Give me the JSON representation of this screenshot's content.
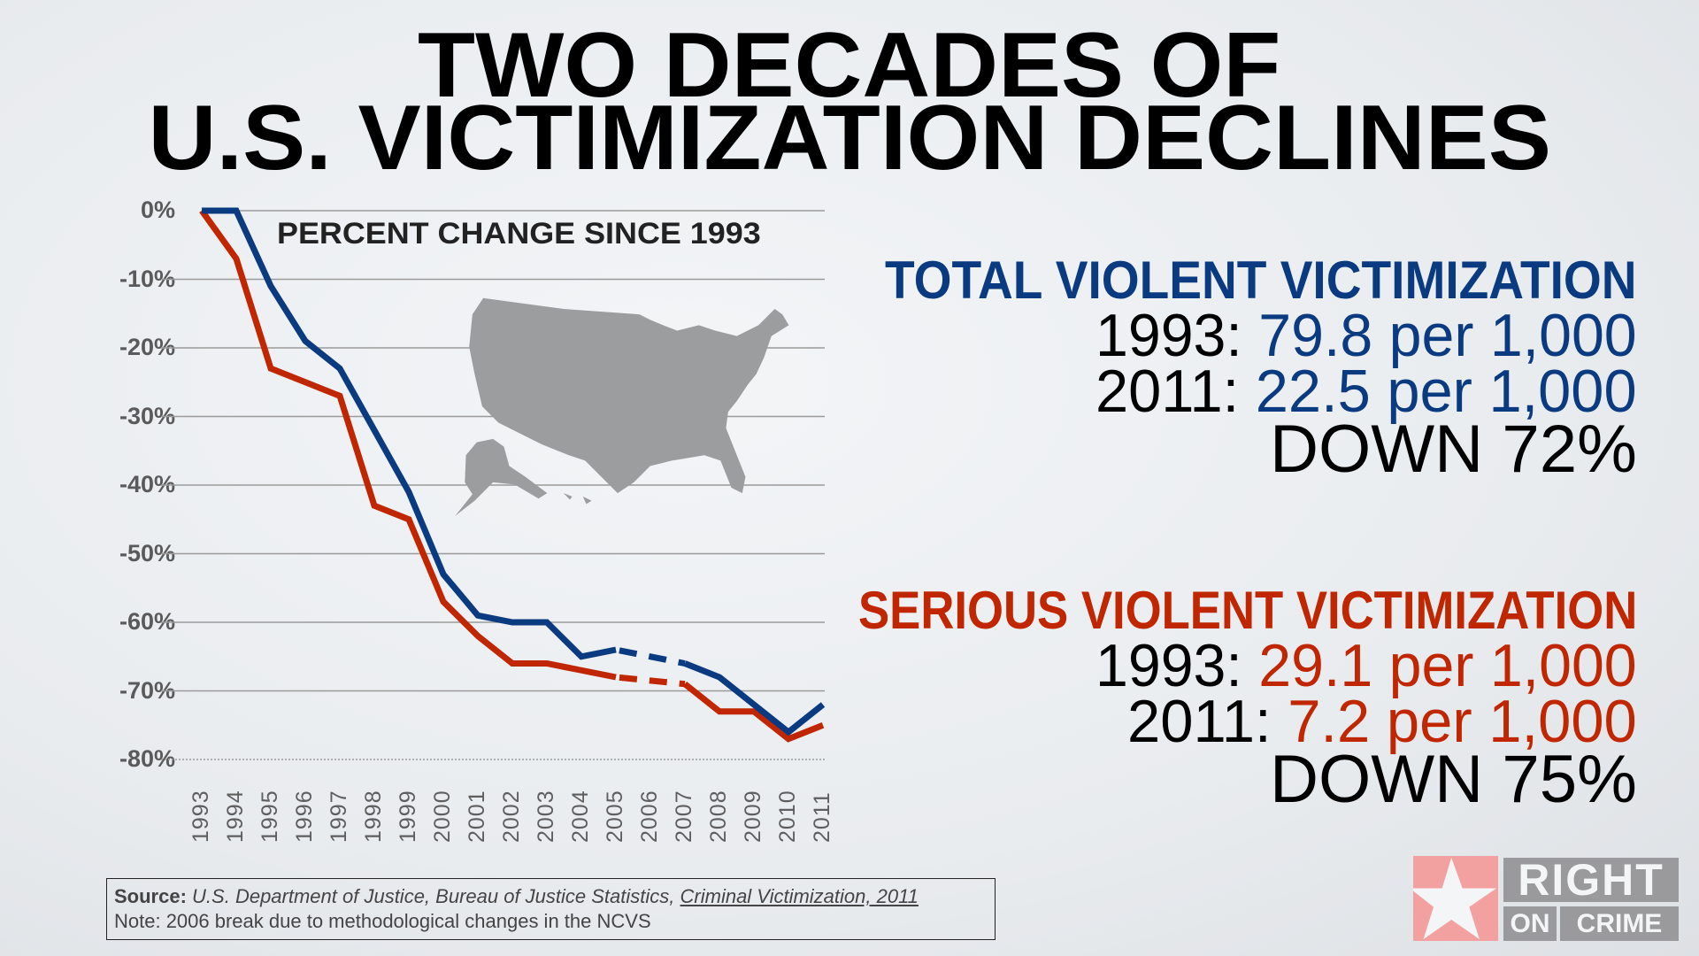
{
  "title": {
    "line1": "TWO DECADES OF",
    "line2": "U.S. VICTIMIZATION DECLINES"
  },
  "chart_data": {
    "type": "line",
    "title": "PERCENT CHANGE SINCE 1993",
    "xlabel": "",
    "ylabel": "",
    "x": [
      "1993",
      "1994",
      "1995",
      "1996",
      "1997",
      "1998",
      "1999",
      "2000",
      "2001",
      "2002",
      "2003",
      "2004",
      "2005",
      "2006",
      "2007",
      "2008",
      "2009",
      "2010",
      "2011"
    ],
    "yticks": [
      "0%",
      "-10%",
      "-20%",
      "-30%",
      "-40%",
      "-50%",
      "-60%",
      "-70%",
      "-80%"
    ],
    "ylim": [
      -80,
      0
    ],
    "grid": true,
    "note": "2006 break (dashed segment 2005-2007)",
    "series": [
      {
        "name": "Total Violent Victimization",
        "color": "#0a3a80",
        "values": [
          0,
          0,
          -11,
          -19,
          -23,
          -32,
          -41,
          -53,
          -59,
          -60,
          -60,
          -65,
          -64,
          null,
          -66,
          -68,
          -72,
          -76,
          -72
        ]
      },
      {
        "name": "Serious Violent Victimization",
        "color": "#c02600",
        "values": [
          0,
          -7,
          -23,
          -25,
          -27,
          -43,
          -45,
          -57,
          -62,
          -66,
          -66,
          -67,
          -68,
          null,
          -69,
          -73,
          -73,
          -77,
          -75
        ]
      }
    ]
  },
  "stats": {
    "total": {
      "heading": "TOTAL VIOLENT VICTIMIZATION",
      "l1_year": "1993:",
      "l1_value": "79.8 per 1,000",
      "l2_year": "2011:",
      "l2_value": "22.5 per 1,000",
      "down": "DOWN 72%"
    },
    "serious": {
      "heading": "SERIOUS VIOLENT VICTIMIZATION",
      "l1_year": "1993:",
      "l1_value": "29.1 per 1,000",
      "l2_year": "2011:",
      "l2_value": "7.2 per 1,000",
      "down": "DOWN 75%"
    }
  },
  "source": {
    "label": "Source:",
    "text": "U.S. Department of Justice, Bureau of Justice Statistics,",
    "publication": "Criminal Victimization, 2011",
    "note": "Note: 2006 break due to methodological changes in the NCVS"
  },
  "logo": {
    "line1": "RIGHT",
    "line2a": "ON",
    "line2b": "CRIME"
  },
  "colors": {
    "blue": "#0a3a80",
    "red": "#c02600",
    "map": "#9c9d9f",
    "logo_pink": "#f2a0a0",
    "logo_gray": "#9a9a9c"
  }
}
